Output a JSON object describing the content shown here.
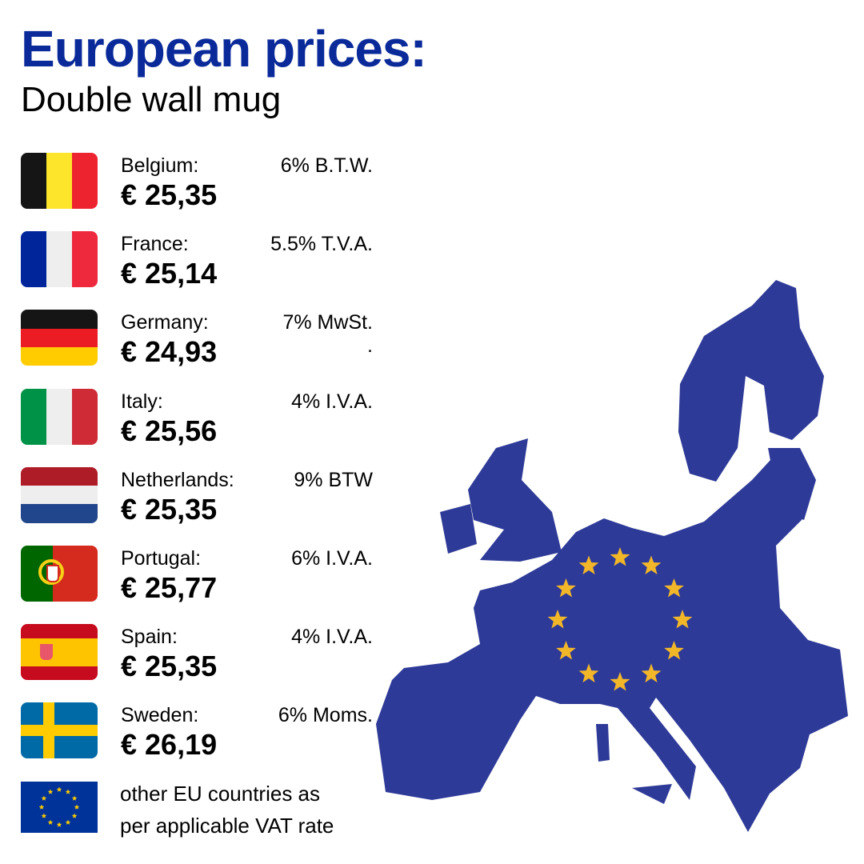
{
  "title": "European prices:",
  "subtitle": "Double wall mug",
  "countries": [
    {
      "name": "Belgium:",
      "vat": "6% B.T.W.",
      "price": "€ 25,35",
      "flag": "belgium-flag"
    },
    {
      "name": "France:",
      "vat": "5.5% T.V.A.",
      "price": "€ 25,14",
      "flag": "france-flag"
    },
    {
      "name": "Germany:",
      "vat": "7% MwSt.",
      "vat_extra": ".",
      "price": "€ 24,93",
      "flag": "germany-flag"
    },
    {
      "name": "Italy:",
      "vat": "4% I.V.A.",
      "price": "€ 25,56",
      "flag": "italy-flag"
    },
    {
      "name": "Netherlands:",
      "vat": "9% BTW",
      "price": "€ 25,35",
      "flag": "netherlands-flag"
    },
    {
      "name": "Portugal:",
      "vat": "6% I.V.A.",
      "price": "€ 25,77",
      "flag": "portugal-flag"
    },
    {
      "name": "Spain:",
      "vat": "4% I.V.A.",
      "price": "€ 25,35",
      "flag": "spain-flag"
    },
    {
      "name": "Sweden:",
      "vat": "6% Moms.",
      "price": "€ 26,19",
      "flag": "sweden-flag"
    }
  ],
  "note": {
    "line1": "other EU countries as",
    "line2": "per applicable VAT rate",
    "flag": "eu-flag"
  },
  "colors": {
    "title": "#0a2a9a",
    "map": "#2e3a97",
    "stars": "#f2b629",
    "eu_blue": "#003399"
  }
}
